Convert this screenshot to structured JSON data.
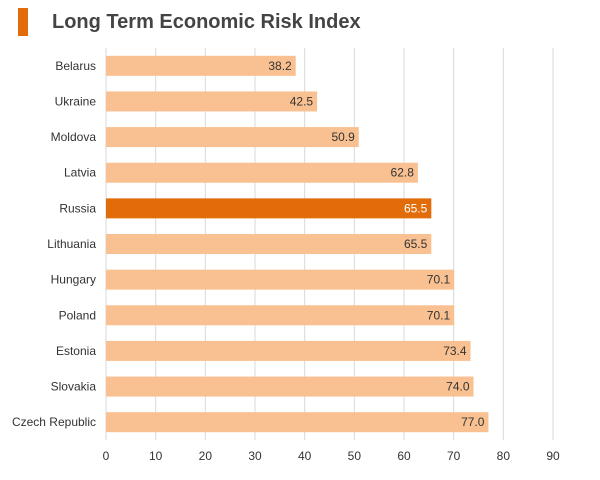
{
  "chart_data": {
    "type": "bar",
    "orientation": "horizontal",
    "title": "Long Term Economic Risk Index",
    "categories": [
      "Belarus",
      "Ukraine",
      "Moldova",
      "Latvia",
      "Russia",
      "Lithuania",
      "Hungary",
      "Poland",
      "Estonia",
      "Slovakia",
      "Czech Republic"
    ],
    "values": [
      38.2,
      42.5,
      50.9,
      62.8,
      65.5,
      65.5,
      70.1,
      70.1,
      73.4,
      74.0,
      77.0
    ],
    "value_labels": [
      "38.2",
      "42.5",
      "50.9",
      "62.8",
      "65.5",
      "65.5",
      "70.1",
      "70.1",
      "73.4",
      "74.0",
      "77.0"
    ],
    "highlight": "Russia",
    "xlim": [
      0,
      90
    ],
    "xticks": [
      "0",
      "10",
      "20",
      "30",
      "40",
      "50",
      "60",
      "70",
      "80",
      "90"
    ],
    "xlabel": "",
    "ylabel": "",
    "grid": true,
    "legend": "none"
  },
  "colors": {
    "bar": "#f9c191",
    "highlight": "#e36c0a",
    "accent": "#e36c0a",
    "grid": "#d9d9d9",
    "label_dark": "#333333",
    "label_light": "#ffffff"
  }
}
